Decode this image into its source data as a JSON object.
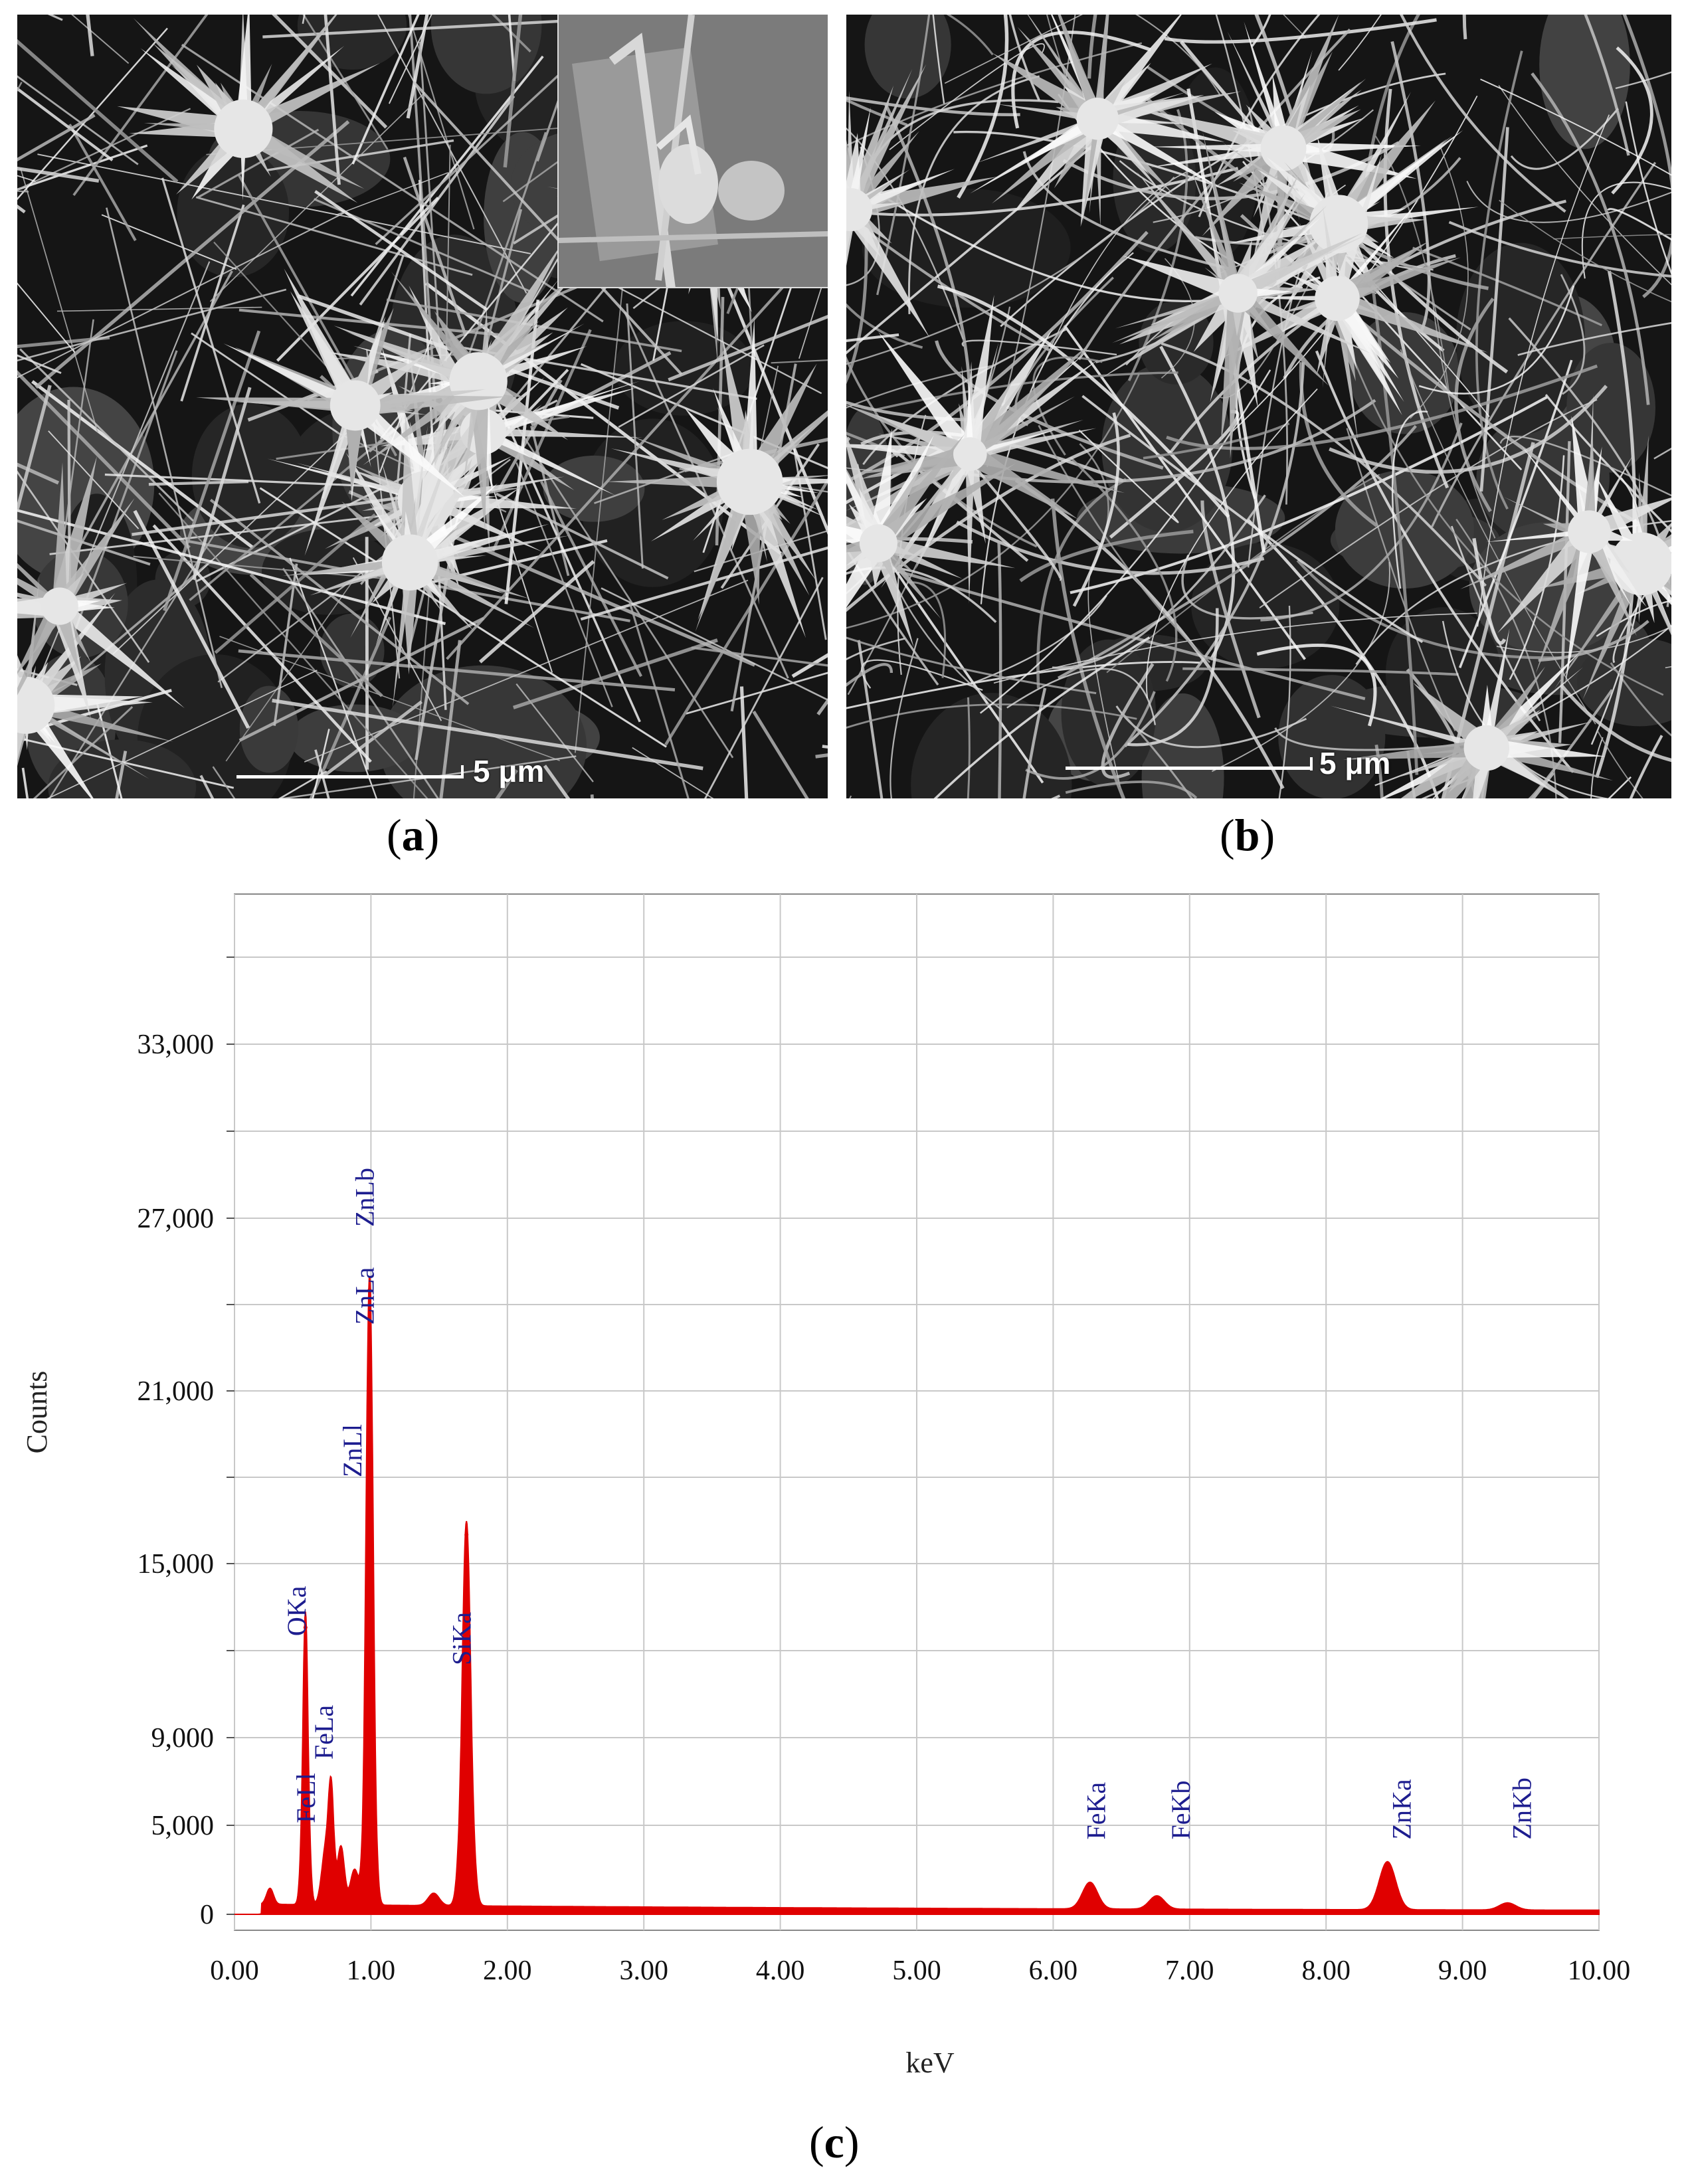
{
  "panels": {
    "a": {
      "label": "a",
      "scale_bar": "5 μm"
    },
    "b": {
      "label": "b",
      "scale_bar": "5 μm"
    },
    "c": {
      "label": "c"
    }
  },
  "colors": {
    "spectrum": "#e00000",
    "peak_labels": "#1d1d8f",
    "grid": "#c8c8c8"
  },
  "chart_data": {
    "type": "area",
    "xlabel": "keV",
    "ylabel": "Counts",
    "xlim": [
      0,
      10
    ],
    "ylim": [
      0,
      36000
    ],
    "x_ticks": [
      "0.00",
      "1.00",
      "2.00",
      "3.00",
      "4.00",
      "5.00",
      "6.00",
      "7.00",
      "8.00",
      "9.00",
      "10.00"
    ],
    "y_ticks": [
      {
        "value": 0,
        "label": "0"
      },
      {
        "value": 5000,
        "label": "5,000"
      },
      {
        "value": 9000,
        "label": "9,000"
      },
      {
        "value": 15000,
        "label": "15,000"
      },
      {
        "value": 21000,
        "label": "21,000"
      },
      {
        "value": 27000,
        "label": "27,000"
      },
      {
        "value": 33000,
        "label": "33,000"
      }
    ],
    "grid": true,
    "peaks": [
      {
        "x": 0.26,
        "y": 900,
        "width": 0.025
      },
      {
        "x": 0.52,
        "y": 12800,
        "width": 0.022
      },
      {
        "x": 0.67,
        "y": 3200,
        "width": 0.03
      },
      {
        "x": 0.71,
        "y": 5200,
        "width": 0.02
      },
      {
        "x": 0.78,
        "y": 3300,
        "width": 0.025
      },
      {
        "x": 0.88,
        "y": 2000,
        "width": 0.03
      },
      {
        "x": 0.99,
        "y": 24500,
        "width": 0.028
      },
      {
        "x": 1.46,
        "y": 700,
        "width": 0.04
      },
      {
        "x": 1.7,
        "y": 16000,
        "width": 0.035
      },
      {
        "x": 6.27,
        "y": 1500,
        "width": 0.055
      },
      {
        "x": 6.76,
        "y": 750,
        "width": 0.055
      },
      {
        "x": 8.45,
        "y": 2700,
        "width": 0.06
      },
      {
        "x": 9.33,
        "y": 400,
        "width": 0.06
      }
    ],
    "annotations": [
      {
        "text": "OKa",
        "x": 0.52,
        "y": 12500
      },
      {
        "text": "FeLa",
        "x": 0.72,
        "y": 8000
      },
      {
        "text": "FeLl",
        "x": 0.59,
        "y": 5100
      },
      {
        "text": "ZnLl",
        "x": 0.93,
        "y": 18000
      },
      {
        "text": "ZnLa",
        "x": 1.02,
        "y": 23300
      },
      {
        "text": "ZnLb",
        "x": 1.02,
        "y": 26700
      },
      {
        "text": "SiKa",
        "x": 1.73,
        "y": 11500
      },
      {
        "text": "FeKa",
        "x": 6.38,
        "y": 4200
      },
      {
        "text": "FeKb",
        "x": 7.0,
        "y": 4200
      },
      {
        "text": "ZnKa",
        "x": 8.62,
        "y": 4200
      },
      {
        "text": "ZnKb",
        "x": 9.5,
        "y": 4200
      }
    ]
  }
}
